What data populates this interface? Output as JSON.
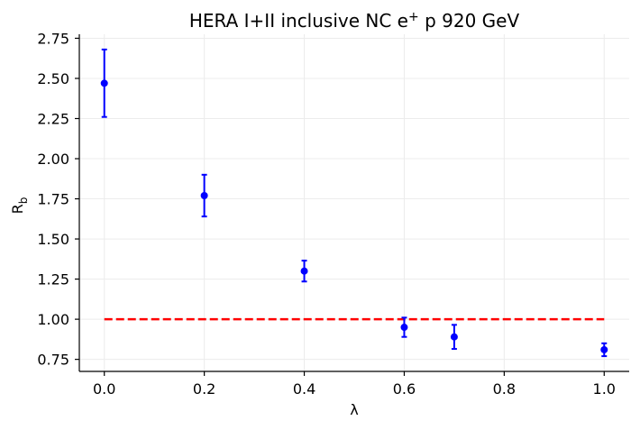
{
  "chart_data": {
    "type": "scatter",
    "title_main": "HERA I+II inclusive NC e",
    "title_sup": "+",
    "title_end": " p 920 GeV",
    "xlabel": "λ",
    "ylabel_main": "R",
    "ylabel_sub": "b",
    "xlim": [
      -0.05,
      1.05
    ],
    "ylim": [
      0.675,
      2.775
    ],
    "xticks": [
      0.0,
      0.2,
      0.4,
      0.6,
      0.8,
      1.0
    ],
    "xtick_labels": [
      "0.0",
      "0.2",
      "0.4",
      "0.6",
      "0.8",
      "1.0"
    ],
    "yticks": [
      0.75,
      1.0,
      1.25,
      1.5,
      1.75,
      2.0,
      2.25,
      2.5,
      2.75
    ],
    "ytick_labels": [
      "0.75",
      "1.00",
      "1.25",
      "1.50",
      "1.75",
      "2.00",
      "2.25",
      "2.50",
      "2.75"
    ],
    "grid": true,
    "legend": "none",
    "series": [
      {
        "x": [
          0.0,
          0.2,
          0.4,
          0.6,
          0.7,
          1.0
        ],
        "y": [
          2.47,
          1.77,
          1.3,
          0.95,
          0.89,
          0.81
        ],
        "yerr": [
          0.21,
          0.13,
          0.065,
          0.06,
          0.075,
          0.04
        ],
        "color": "#0000ff"
      }
    ],
    "reference_line": {
      "y": 1.0,
      "x_from": 0.0,
      "x_to": 1.0,
      "color": "#ff0000",
      "style": "dashed"
    }
  }
}
